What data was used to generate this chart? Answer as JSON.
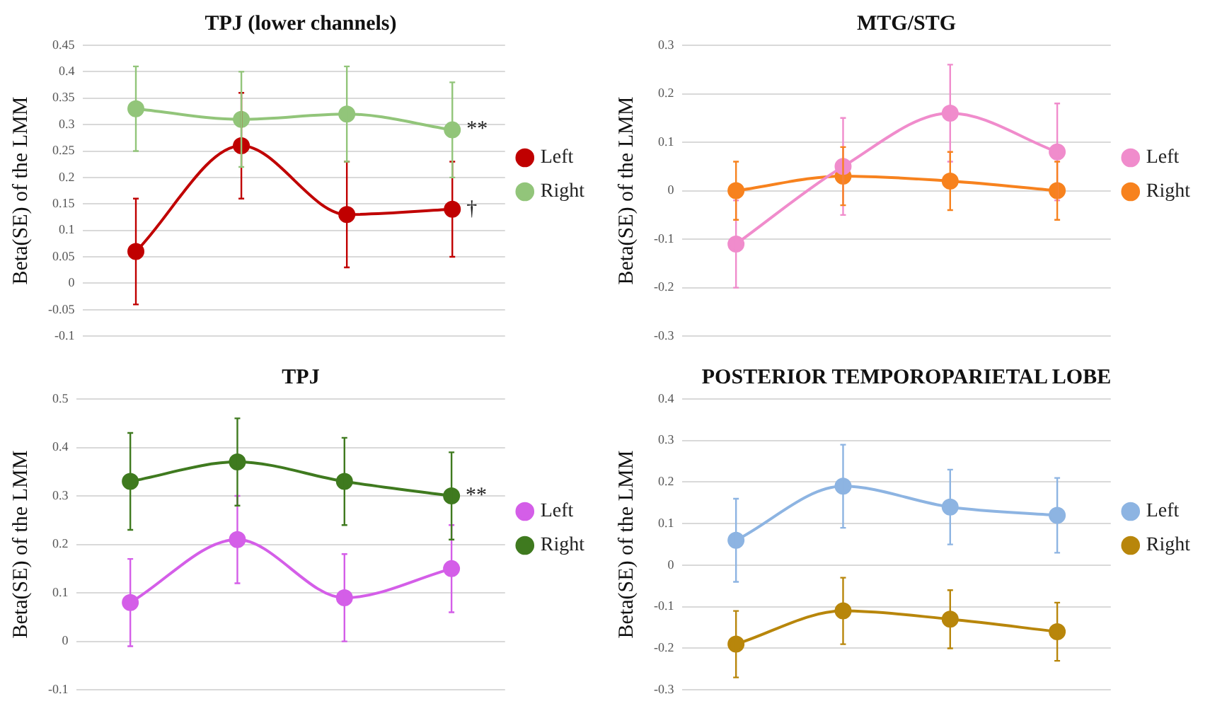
{
  "chart_data": [
    {
      "type": "line",
      "title": "TPJ (lower channels)",
      "ylabel": "Beta(SE) of the LMM",
      "categories": [
        null,
        null,
        null,
        null
      ],
      "series": [
        {
          "name": "Left",
          "color": "#c00000",
          "values": [
            0.06,
            0.26,
            0.13,
            0.14
          ],
          "errors": [
            0.1,
            0.1,
            0.1,
            0.09
          ]
        },
        {
          "name": "Right",
          "color": "#92c57a",
          "values": [
            0.33,
            0.31,
            0.32,
            0.29
          ],
          "errors": [
            0.08,
            0.09,
            0.09,
            0.09
          ]
        }
      ],
      "ylim": [
        -0.1,
        0.45
      ],
      "yticks": [
        -0.1,
        -0.05,
        0,
        0.05,
        0.1,
        0.15,
        0.2,
        0.25,
        0.3,
        0.35,
        0.4,
        0.45
      ],
      "annotations": [
        "**",
        "†"
      ],
      "grid": "y",
      "legend": "right",
      "marker": "circle",
      "tick_labels": "y"
    },
    {
      "type": "line",
      "title": "MTG/STG",
      "ylabel": "Beta(SE) of the LMM",
      "categories": [
        null,
        null,
        null,
        null
      ],
      "series": [
        {
          "name": "Left",
          "color": "#f08ccc",
          "values": [
            -0.11,
            0.05,
            0.16,
            0.08
          ],
          "errors": [
            0.09,
            0.1,
            0.1,
            0.1
          ]
        },
        {
          "name": "Right",
          "color": "#f7821e",
          "values": [
            0,
            0.03,
            0.02,
            0
          ],
          "errors": [
            0.06,
            0.06,
            0.06,
            0.06
          ]
        }
      ],
      "ylim": [
        -0.3,
        0.3
      ],
      "yticks": [
        -0.3,
        -0.2,
        -0.1,
        0,
        0.1,
        0.2,
        0.3
      ],
      "grid": "y",
      "legend": "right",
      "marker": "circle",
      "tick_labels": "y"
    },
    {
      "type": "line",
      "title": "TPJ",
      "ylabel": "Beta(SE) of the LMM",
      "categories": [
        null,
        null,
        null,
        null
      ],
      "series": [
        {
          "name": "Left",
          "color": "#d45ee8",
          "values": [
            0.08,
            0.21,
            0.09,
            0.15
          ],
          "errors": [
            0.09,
            0.09,
            0.09,
            0.09
          ]
        },
        {
          "name": "Right",
          "color": "#3f7a1f",
          "values": [
            0.33,
            0.37,
            0.33,
            0.3
          ],
          "errors": [
            0.1,
            0.09,
            0.09,
            0.09
          ]
        }
      ],
      "ylim": [
        -0.1,
        0.5
      ],
      "yticks": [
        -0.1,
        0,
        0.1,
        0.2,
        0.3,
        0.4,
        0.5
      ],
      "annotations": [
        "**"
      ],
      "grid": "y",
      "legend": "right",
      "marker": "circle",
      "tick_labels": "y"
    },
    {
      "type": "line",
      "title": "POSTERIOR TEMPOROPARIETAL LOBE",
      "ylabel": "Beta(SE) of the LMM",
      "categories": [
        null,
        null,
        null,
        null
      ],
      "series": [
        {
          "name": "Left",
          "color": "#8db4e2",
          "values": [
            0.06,
            0.19,
            0.14,
            0.12
          ],
          "errors": [
            0.1,
            0.1,
            0.09,
            0.09
          ]
        },
        {
          "name": "Right",
          "color": "#b8860b",
          "values": [
            -0.19,
            -0.11,
            -0.13,
            -0.16
          ],
          "errors": [
            0.08,
            0.08,
            0.07,
            0.07
          ]
        }
      ],
      "ylim": [
        -0.3,
        0.4
      ],
      "yticks": [
        -0.3,
        -0.2,
        -0.1,
        0,
        0.1,
        0.2,
        0.3,
        0.4
      ],
      "grid": "y",
      "legend": "right",
      "marker": "circle",
      "tick_labels": "y"
    }
  ]
}
